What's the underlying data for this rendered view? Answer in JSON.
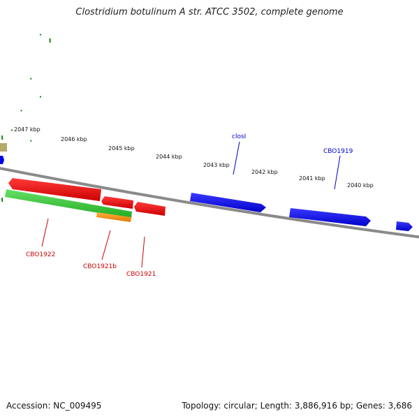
{
  "title": "Clostridium botulinum A str. ATCC 3502, complete genome",
  "footer": {
    "accession": "Accession: NC_009495",
    "stats": "Topology: circular; Length: 3,886,916 bp; Genes: 3,686"
  },
  "colors": {
    "ruler": "#1a7f1a",
    "backbone": "#808080",
    "forward_gene": "#0000ee",
    "reverse_gene": "#ee0000",
    "rna": "#33cc33",
    "pseudo": "#ff9900",
    "other": "#b5a96e"
  },
  "ruler_ticks": [
    "2047 kbp",
    "2046 kbp",
    "2045 kbp",
    "2044 kbp",
    "2043 kbp",
    "2042 kbp",
    "2041 kbp",
    "2040 kbp"
  ],
  "gene_labels": [
    {
      "text": "closI",
      "color": "#0000cc"
    },
    {
      "text": "CBO1919",
      "color": "#0000cc"
    },
    {
      "text": "CBO1922",
      "color": "#cc0000"
    },
    {
      "text": "CBO1921b",
      "color": "#cc0000"
    },
    {
      "text": "CBO1921",
      "color": "#cc0000"
    }
  ]
}
